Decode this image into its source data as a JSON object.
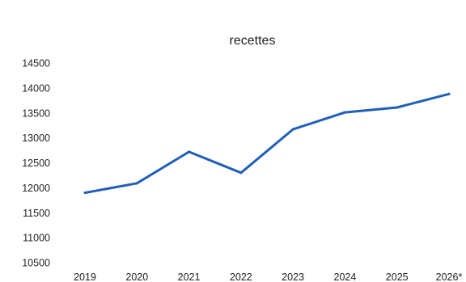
{
  "chart_data": {
    "type": "line",
    "title": "recettes",
    "xlabel": "",
    "ylabel": "",
    "categories": [
      "2019",
      "2020",
      "2021",
      "2022",
      "2023",
      "2024",
      "2025",
      "2026*"
    ],
    "series": [
      {
        "values": [
          11900,
          12090,
          12720,
          12300,
          13170,
          13510,
          13610,
          13880
        ],
        "color": "#1f5fb8"
      }
    ],
    "ylim": [
      10500,
      14500
    ],
    "yticks": [
      10500,
      11000,
      11500,
      12000,
      12500,
      13000,
      13500,
      14000,
      14500
    ],
    "grid": false,
    "legend": "none"
  }
}
